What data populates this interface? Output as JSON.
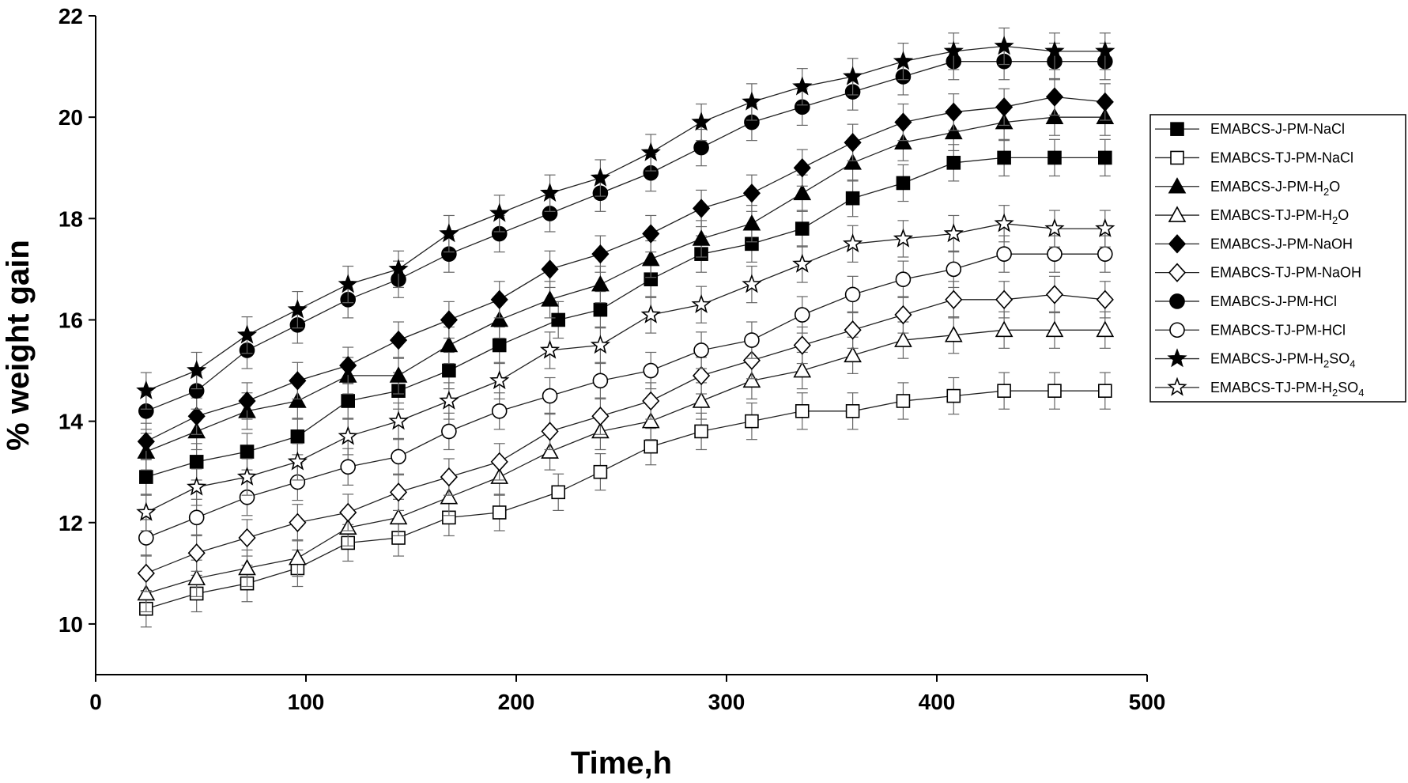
{
  "chart_data": {
    "type": "line",
    "xlabel": "Time,h",
    "ylabel": "% weight gain",
    "xlim": [
      0,
      500
    ],
    "ylim": [
      9,
      22
    ],
    "xticks": [
      0,
      100,
      200,
      300,
      400,
      500
    ],
    "yticks": [
      10,
      12,
      14,
      16,
      18,
      20,
      22
    ],
    "grid": false,
    "legend_position": "right",
    "error_bars": true,
    "series": [
      {
        "name": "EMABCS-J-PM-NaCl",
        "marker": "square",
        "filled": true,
        "x": [
          24,
          48,
          72,
          96,
          120,
          144,
          168,
          192,
          220,
          240,
          264,
          288,
          312,
          336,
          360,
          384,
          408,
          432,
          456,
          480
        ],
        "y": [
          12.9,
          13.2,
          13.4,
          13.7,
          14.4,
          14.6,
          15.0,
          15.5,
          16.0,
          16.2,
          16.8,
          17.3,
          17.5,
          17.8,
          18.4,
          18.7,
          19.1,
          19.2,
          19.2,
          19.2
        ]
      },
      {
        "name": "EMABCS-TJ-PM-NaCl",
        "marker": "square",
        "filled": false,
        "x": [
          24,
          48,
          72,
          96,
          120,
          144,
          168,
          192,
          220,
          240,
          264,
          288,
          312,
          336,
          360,
          384,
          408,
          432,
          456,
          480
        ],
        "y": [
          10.3,
          10.6,
          10.8,
          11.1,
          11.6,
          11.7,
          12.1,
          12.2,
          12.6,
          13.0,
          13.5,
          13.8,
          14.0,
          14.2,
          14.2,
          14.4,
          14.5,
          14.6,
          14.6,
          14.6
        ]
      },
      {
        "name": "EMABCS-J-PM-H",
        "name_sub": "2",
        "name_tail": "O",
        "marker": "triangle",
        "filled": true,
        "x": [
          24,
          48,
          72,
          96,
          120,
          144,
          168,
          192,
          216,
          240,
          264,
          288,
          312,
          336,
          360,
          384,
          408,
          432,
          456,
          480
        ],
        "y": [
          13.4,
          13.8,
          14.2,
          14.4,
          14.9,
          14.9,
          15.5,
          16.0,
          16.4,
          16.7,
          17.2,
          17.6,
          17.9,
          18.5,
          19.1,
          19.5,
          19.7,
          19.9,
          20.0,
          20.0
        ]
      },
      {
        "name": "EMABCS-TJ-PM-H",
        "name_sub": "2",
        "name_tail": "O",
        "marker": "triangle",
        "filled": false,
        "x": [
          24,
          48,
          72,
          96,
          120,
          144,
          168,
          192,
          216,
          240,
          264,
          288,
          312,
          336,
          360,
          384,
          408,
          432,
          456,
          480
        ],
        "y": [
          10.6,
          10.9,
          11.1,
          11.3,
          11.9,
          12.1,
          12.5,
          12.9,
          13.4,
          13.8,
          14.0,
          14.4,
          14.8,
          15.0,
          15.3,
          15.6,
          15.7,
          15.8,
          15.8,
          15.8
        ]
      },
      {
        "name": "EMABCS-J-PM-NaOH",
        "marker": "diamond",
        "filled": true,
        "x": [
          24,
          48,
          72,
          96,
          120,
          144,
          168,
          192,
          216,
          240,
          264,
          288,
          312,
          336,
          360,
          384,
          408,
          432,
          456,
          480
        ],
        "y": [
          13.6,
          14.1,
          14.4,
          14.8,
          15.1,
          15.6,
          16.0,
          16.4,
          17.0,
          17.3,
          17.7,
          18.2,
          18.5,
          19.0,
          19.5,
          19.9,
          20.1,
          20.2,
          20.4,
          20.3
        ]
      },
      {
        "name": "EMABCS-TJ-PM-NaOH",
        "marker": "diamond",
        "filled": false,
        "x": [
          24,
          48,
          72,
          96,
          120,
          144,
          168,
          192,
          216,
          240,
          264,
          288,
          312,
          336,
          360,
          384,
          408,
          432,
          456,
          480
        ],
        "y": [
          11.0,
          11.4,
          11.7,
          12.0,
          12.2,
          12.6,
          12.9,
          13.2,
          13.8,
          14.1,
          14.4,
          14.9,
          15.2,
          15.5,
          15.8,
          16.1,
          16.4,
          16.4,
          16.5,
          16.4
        ]
      },
      {
        "name": "EMABCS-J-PM-HCl",
        "marker": "circle",
        "filled": true,
        "x": [
          24,
          48,
          72,
          96,
          120,
          144,
          168,
          192,
          216,
          240,
          264,
          288,
          312,
          336,
          360,
          384,
          408,
          432,
          456,
          480
        ],
        "y": [
          14.2,
          14.6,
          15.4,
          15.9,
          16.4,
          16.8,
          17.3,
          17.7,
          18.1,
          18.5,
          18.9,
          19.4,
          19.9,
          20.2,
          20.5,
          20.8,
          21.1,
          21.1,
          21.1,
          21.1
        ]
      },
      {
        "name": "EMABCS-TJ-PM-HCl",
        "marker": "circle",
        "filled": false,
        "x": [
          24,
          48,
          72,
          96,
          120,
          144,
          168,
          192,
          216,
          240,
          264,
          288,
          312,
          336,
          360,
          384,
          408,
          432,
          456,
          480
        ],
        "y": [
          11.7,
          12.1,
          12.5,
          12.8,
          13.1,
          13.3,
          13.8,
          14.2,
          14.5,
          14.8,
          15.0,
          15.4,
          15.6,
          16.1,
          16.5,
          16.8,
          17.0,
          17.3,
          17.3,
          17.3
        ]
      },
      {
        "name": "EMABCS-J-PM-H",
        "name_sub": "2",
        "name_tail": "SO",
        "name_sub2": "4",
        "marker": "star",
        "filled": true,
        "x": [
          24,
          48,
          72,
          96,
          120,
          144,
          168,
          192,
          216,
          240,
          264,
          288,
          312,
          336,
          360,
          384,
          408,
          432,
          456,
          480
        ],
        "y": [
          14.6,
          15.0,
          15.7,
          16.2,
          16.7,
          17.0,
          17.7,
          18.1,
          18.5,
          18.8,
          19.3,
          19.9,
          20.3,
          20.6,
          20.8,
          21.1,
          21.3,
          21.4,
          21.3,
          21.3
        ]
      },
      {
        "name": "EMABCS-TJ-PM-H",
        "name_sub": "2",
        "name_tail": "SO",
        "name_sub2": "4",
        "marker": "star",
        "filled": false,
        "x": [
          24,
          48,
          72,
          96,
          120,
          144,
          168,
          192,
          216,
          240,
          264,
          288,
          312,
          336,
          360,
          384,
          408,
          432,
          456,
          480
        ],
        "y": [
          12.2,
          12.7,
          12.9,
          13.2,
          13.7,
          14.0,
          14.4,
          14.8,
          15.4,
          15.5,
          16.1,
          16.3,
          16.7,
          17.1,
          17.5,
          17.6,
          17.7,
          17.9,
          17.8,
          17.8
        ]
      }
    ]
  }
}
